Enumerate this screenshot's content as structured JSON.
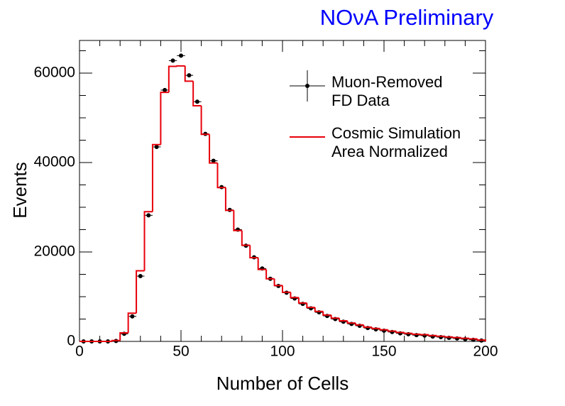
{
  "chart_data": {
    "type": "histogram",
    "title": "NOνA Preliminary",
    "x_label": "Number of Cells",
    "y_label": "Events",
    "bins": [
      0,
      4,
      8,
      12,
      16,
      20,
      24,
      28,
      32,
      36,
      40,
      44,
      48,
      52,
      56,
      60,
      64,
      68,
      72,
      76,
      80,
      84,
      88,
      92,
      96,
      100,
      104,
      108,
      112,
      116,
      120,
      124,
      128,
      132,
      136,
      140,
      144,
      148,
      152,
      156,
      160,
      164,
      168,
      172,
      176,
      180,
      184,
      188,
      192,
      196,
      200
    ],
    "series": [
      {
        "name": "Muon-Removed\nFD Data",
        "color": "#000000",
        "style": "points",
        "values": [
          0,
          0,
          0,
          0,
          100,
          1700,
          5600,
          14600,
          28200,
          43500,
          56200,
          62800,
          63900,
          59500,
          53600,
          46400,
          40400,
          34500,
          29400,
          25000,
          21400,
          18800,
          16300,
          14000,
          12400,
          10900,
          9600,
          8400,
          7400,
          6500,
          5700,
          5000,
          4400,
          3900,
          3500,
          3000,
          2700,
          2400,
          2100,
          1800,
          1600,
          1400,
          1300,
          1100,
          950,
          800,
          650,
          500,
          350,
          200
        ]
      },
      {
        "name": "Cosmic Simulation\nArea Normalized",
        "color": "#e8000b",
        "style": "step",
        "values": [
          0,
          0,
          0,
          0,
          200,
          1900,
          6300,
          15800,
          29000,
          44000,
          55700,
          61500,
          61600,
          58200,
          52700,
          46300,
          39900,
          34400,
          29300,
          24800,
          21500,
          18700,
          16100,
          14000,
          12500,
          11000,
          9800,
          8600,
          7600,
          6700,
          5900,
          5200,
          4600,
          4100,
          3700,
          3200,
          2900,
          2600,
          2300,
          2000,
          1800,
          1600,
          1500,
          1300,
          1150,
          1000,
          850,
          700,
          550,
          300
        ]
      }
    ],
    "xlim": [
      0,
      200
    ],
    "xticks": [
      0,
      50,
      100,
      150,
      200
    ],
    "ylim": [
      0,
      67300
    ],
    "yticks": [
      0,
      20000,
      40000,
      60000
    ],
    "title_color": "#0000ff",
    "legend": "upper right"
  }
}
